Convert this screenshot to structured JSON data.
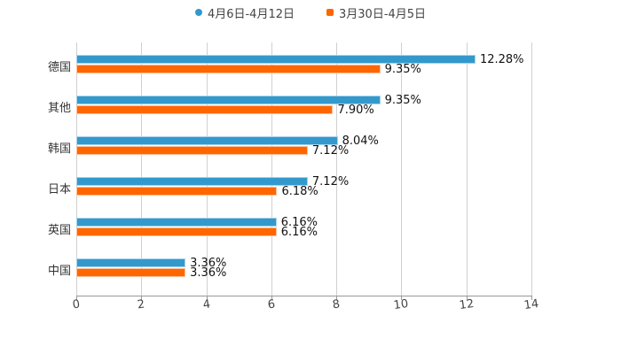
{
  "legend": [
    {
      "label": "4月6日-4月12日",
      "color": "#3399cc",
      "shape": "circle"
    },
    {
      "label": "3月30日-4月5日",
      "color": "#ff6600",
      "shape": "square"
    }
  ],
  "chart_data": {
    "type": "bar",
    "orientation": "horizontal",
    "title": "",
    "xlabel": "",
    "ylabel": "",
    "xlim": [
      0,
      14
    ],
    "x_ticks": [
      "0",
      "2",
      "4",
      "6",
      "8",
      "10",
      "12",
      "14"
    ],
    "grid": true,
    "legend_position": "top",
    "categories": [
      "德国",
      "其他",
      "韩国",
      "日本",
      "英国",
      "中国"
    ],
    "series": [
      {
        "name": "4月6日-4月12日",
        "color": "#3399cc",
        "values": [
          12.28,
          9.35,
          8.04,
          7.12,
          6.16,
          3.36
        ],
        "labels": [
          "12.28%",
          "9.35%",
          "8.04%",
          "7.12%",
          "6.16%",
          "3.36%"
        ]
      },
      {
        "name": "3月30日-4月5日",
        "color": "#ff6600",
        "values": [
          9.35,
          7.9,
          7.12,
          6.18,
          6.16,
          3.36
        ],
        "labels": [
          "9.35%",
          "7.90%",
          "7.12%",
          "6.18%",
          "6.16%",
          "3.36%"
        ]
      }
    ]
  }
}
